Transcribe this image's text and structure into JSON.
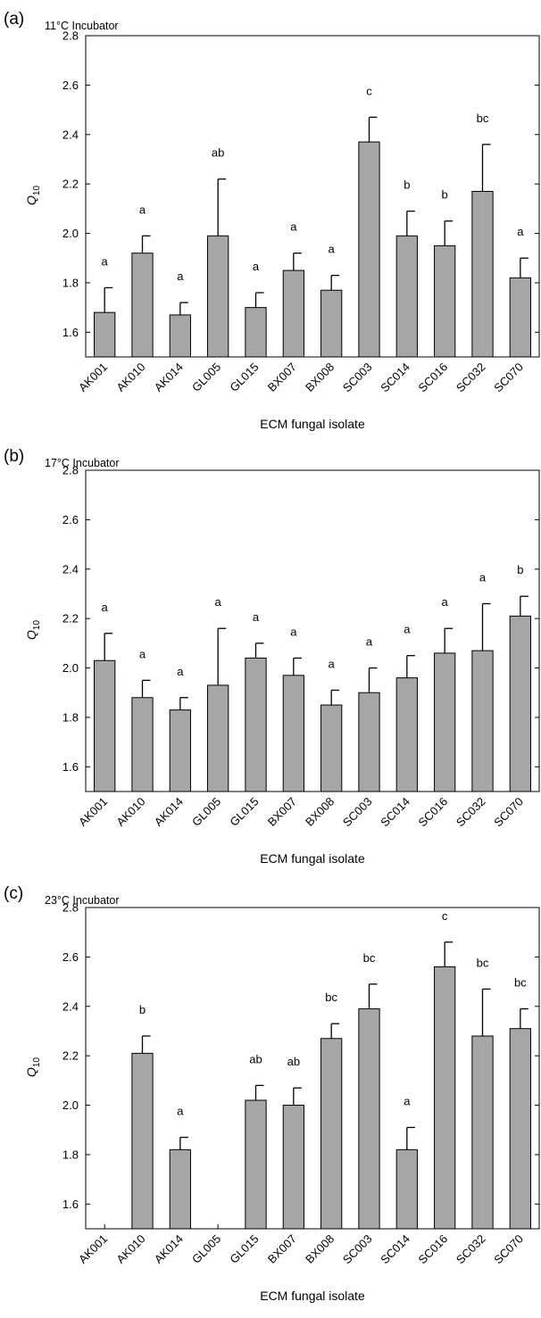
{
  "charts": [
    {
      "panel_label": "(a)",
      "title": "11°C Incubator"
    },
    {
      "panel_label": "(b)",
      "title": "17°C Incubator"
    },
    {
      "panel_label": "(c)",
      "title": "23°C Incubator"
    }
  ],
  "chart_data": [
    {
      "type": "bar",
      "panel_label": "(a)",
      "title": "11°C Incubator",
      "xlabel": "ECM fungal isolate",
      "ylabel": "Q10",
      "ylim": [
        1.5,
        2.8
      ],
      "yticks": [
        "1.6",
        "1.8",
        "2.0",
        "2.2",
        "2.4",
        "2.6",
        "2.8"
      ],
      "categories": [
        "AK001",
        "AK010",
        "AK014",
        "GL005",
        "GL015",
        "BX007",
        "BX008",
        "SC003",
        "SC014",
        "SC016",
        "SC032",
        "SC070"
      ],
      "values": [
        1.68,
        1.92,
        1.67,
        1.99,
        1.7,
        1.85,
        1.77,
        2.37,
        1.99,
        1.95,
        2.17,
        1.82
      ],
      "errors": [
        0.1,
        0.07,
        0.05,
        0.23,
        0.06,
        0.07,
        0.06,
        0.1,
        0.1,
        0.1,
        0.19,
        0.08
      ],
      "letters": [
        "a",
        "a",
        "a",
        "ab",
        "a",
        "a",
        "a",
        "c",
        "b",
        "b",
        "bc",
        "a"
      ],
      "bar_color": "#a6a6a6",
      "grid": false
    },
    {
      "type": "bar",
      "panel_label": "(b)",
      "title": "17°C Incubator",
      "xlabel": "ECM fungal isolate",
      "ylabel": "Q10",
      "ylim": [
        1.5,
        2.8
      ],
      "yticks": [
        "1.6",
        "1.8",
        "2.0",
        "2.2",
        "2.4",
        "2.6",
        "2.8"
      ],
      "categories": [
        "AK001",
        "AK010",
        "AK014",
        "GL005",
        "GL015",
        "BX007",
        "BX008",
        "SC003",
        "SC014",
        "SC016",
        "SC032",
        "SC070"
      ],
      "values": [
        2.03,
        1.88,
        1.83,
        1.93,
        2.04,
        1.97,
        1.85,
        1.9,
        1.96,
        2.06,
        2.07,
        2.21
      ],
      "errors": [
        0.11,
        0.07,
        0.05,
        0.23,
        0.06,
        0.07,
        0.06,
        0.1,
        0.09,
        0.1,
        0.19,
        0.08
      ],
      "letters": [
        "a",
        "a",
        "a",
        "a",
        "a",
        "a",
        "a",
        "a",
        "a",
        "a",
        "a",
        "b"
      ],
      "bar_color": "#a6a6a6",
      "grid": false
    },
    {
      "type": "bar",
      "panel_label": "(c)",
      "title": "23°C Incubator",
      "xlabel": "ECM fungal isolate",
      "ylabel": "Q10",
      "ylim": [
        1.5,
        2.8
      ],
      "yticks": [
        "1.6",
        "1.8",
        "2.0",
        "2.2",
        "2.4",
        "2.6",
        "2.8"
      ],
      "categories": [
        "AK001",
        "AK010",
        "AK014",
        "GL005",
        "GL015",
        "BX007",
        "BX008",
        "SC003",
        "SC014",
        "SC016",
        "SC032",
        "SC070"
      ],
      "values": [
        null,
        2.21,
        1.82,
        null,
        2.02,
        2.0,
        2.27,
        2.39,
        1.82,
        2.56,
        2.28,
        2.31
      ],
      "errors": [
        null,
        0.07,
        0.05,
        null,
        0.06,
        0.07,
        0.06,
        0.1,
        0.09,
        0.1,
        0.19,
        0.08
      ],
      "letters": [
        "",
        "b",
        "a",
        "",
        "ab",
        "ab",
        "bc",
        "bc",
        "a",
        "c",
        "bc",
        "bc"
      ],
      "bar_color": "#a6a6a6",
      "grid": false
    }
  ]
}
